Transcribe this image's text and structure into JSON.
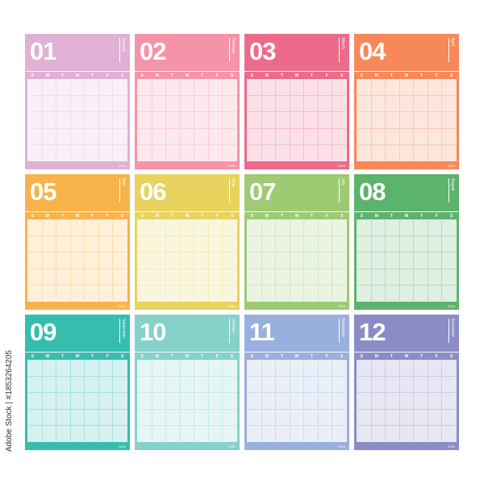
{
  "weekdays": [
    "S",
    "M",
    "T",
    "W",
    "T",
    "F",
    "S"
  ],
  "year": "2024",
  "months": [
    {
      "num": "01",
      "name": "January",
      "color": "#e0b1d5"
    },
    {
      "num": "02",
      "name": "February",
      "color": "#f593a8"
    },
    {
      "num": "03",
      "name": "March",
      "color": "#ec6b8b"
    },
    {
      "num": "04",
      "name": "April",
      "color": "#f6885a"
    },
    {
      "num": "05",
      "name": "May",
      "color": "#f8b34b"
    },
    {
      "num": "06",
      "name": "June",
      "color": "#e7d35d"
    },
    {
      "num": "07",
      "name": "July",
      "color": "#9dca73"
    },
    {
      "num": "08",
      "name": "August",
      "color": "#5cb36b"
    },
    {
      "num": "09",
      "name": "September",
      "color": "#37bdb0"
    },
    {
      "num": "10",
      "name": "October",
      "color": "#84d2c9"
    },
    {
      "num": "11",
      "name": "November",
      "color": "#99afdd"
    },
    {
      "num": "12",
      "name": "December",
      "color": "#8a8dc5"
    }
  ],
  "credit": "Adobe Stock | #1853264205"
}
